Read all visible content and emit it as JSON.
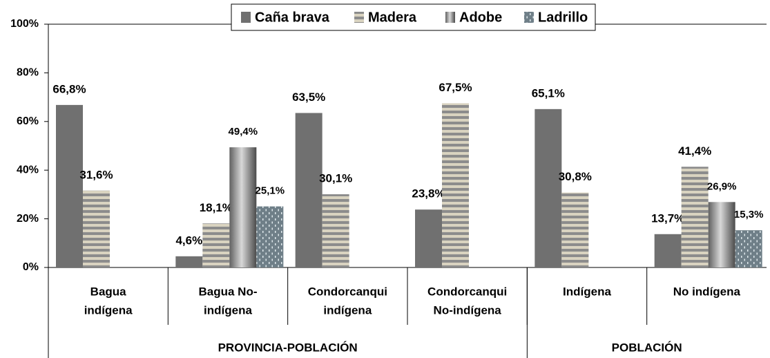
{
  "chart_data": {
    "type": "bar",
    "categories": [
      [
        "Bagua",
        "indígena"
      ],
      [
        "Bagua No-",
        "indígena"
      ],
      [
        "Condorcanqui",
        "indígena"
      ],
      [
        "Condorcanqui",
        "No-indígena"
      ],
      [
        "Indígena"
      ],
      [
        "No indígena"
      ]
    ],
    "category_groups": [
      {
        "label": "PROVINCIA-POBLACIÓN",
        "count": 4
      },
      {
        "label": "POBLACIÓN",
        "count": 2
      }
    ],
    "series": [
      {
        "name": "Caña brava",
        "color": "#707070",
        "pattern": "solid",
        "values": [
          66.8,
          4.6,
          63.5,
          23.8,
          65.1,
          13.7
        ],
        "value_labels": [
          "66,8%",
          "4,6%",
          "63,5%",
          "23,8%",
          "65,1%",
          "13,7%"
        ]
      },
      {
        "name": "Madera",
        "color": "#8c8c8c",
        "pattern": "stripes",
        "values": [
          31.6,
          18.1,
          30.1,
          67.5,
          30.8,
          41.4
        ],
        "value_labels": [
          "31,6%",
          "18,1%",
          "30,1%",
          "67,5%",
          "30,8%",
          "41,4%"
        ]
      },
      {
        "name": "Adobe",
        "color": "#808080",
        "pattern": "gradient",
        "values": [
          null,
          49.4,
          null,
          null,
          null,
          26.9
        ],
        "value_labels": [
          null,
          "49,4%",
          null,
          null,
          null,
          "26,9%"
        ]
      },
      {
        "name": "Ladrillo",
        "color": "#7a8a90",
        "pattern": "dots",
        "values": [
          null,
          25.1,
          null,
          null,
          null,
          15.3
        ],
        "value_labels": [
          null,
          "25,1%",
          null,
          null,
          null,
          "15,3%"
        ]
      }
    ],
    "ylim": [
      0,
      100
    ],
    "yticks": [
      {
        "value": 0,
        "label": "0%"
      },
      {
        "value": 20,
        "label": "20%"
      },
      {
        "value": 40,
        "label": "40%"
      },
      {
        "value": 60,
        "label": "60%"
      },
      {
        "value": 80,
        "label": "80%"
      },
      {
        "value": 100,
        "label": "100%"
      }
    ],
    "grid": false,
    "legend": "top"
  }
}
